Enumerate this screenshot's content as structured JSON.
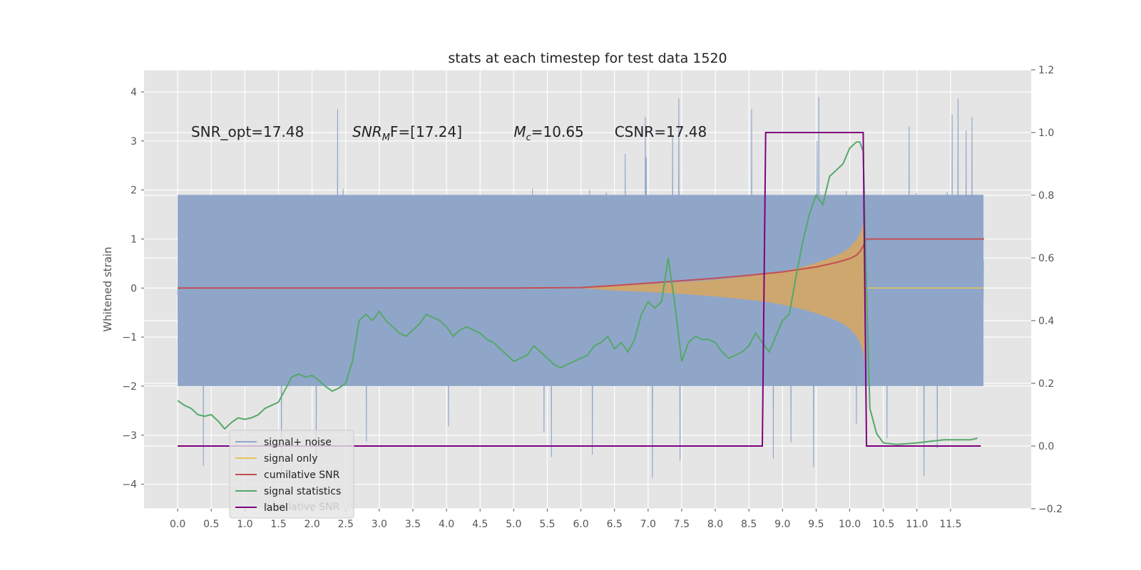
{
  "chart_data": {
    "type": "line",
    "title": "stats at each timestep for test data 1520",
    "ylabel_left": "Whitened strain",
    "ylabel_right": "",
    "xlim": [
      -0.5,
      12.7
    ],
    "ylim_left": [
      -4.5,
      4.45
    ],
    "ylim_right": [
      -0.2,
      1.2
    ],
    "x_ticks": [
      0.0,
      0.5,
      1.0,
      1.5,
      2.0,
      2.5,
      3.0,
      3.5,
      4.0,
      4.5,
      5.0,
      5.5,
      6.0,
      6.5,
      7.0,
      7.5,
      8.0,
      8.5,
      9.0,
      9.5,
      10.0,
      10.5,
      11.0,
      11.5
    ],
    "x_tick_labels": [
      "0.0",
      "0.5",
      "1.0",
      "1.5",
      "2.0",
      "2.5",
      "3.0",
      "3.5",
      "4.0",
      "4.5",
      "5.0",
      "5.5",
      "6.0",
      "6.5",
      "7.0",
      "7.5",
      "8.0",
      "8.5",
      "9.0",
      "9.5",
      "10.0",
      "10.5",
      "11.0",
      "11.5"
    ],
    "y_ticks_left": [
      -4,
      -3,
      -2,
      -1,
      0,
      1,
      2,
      3,
      4
    ],
    "y_tick_labels_left": [
      "−4",
      "−3",
      "−2",
      "−1",
      "0",
      "1",
      "2",
      "3",
      "4"
    ],
    "y_ticks_right": [
      -0.2,
      0.0,
      0.2,
      0.4,
      0.6,
      0.8,
      1.0,
      1.2
    ],
    "y_tick_labels_right": [
      "−0.2",
      "0.0",
      "0.2",
      "0.4",
      "0.6",
      "0.8",
      "1.0",
      "1.2"
    ],
    "grid": true,
    "legend_position": "lower-left",
    "annotations": [
      {
        "main": "SNR_opt=17.48",
        "x": 0.2
      },
      {
        "main": "SNR",
        "sub": "M",
        "rest": "F=[17.24]",
        "italic": true,
        "x": 2.6
      },
      {
        "main": "M",
        "sub": "c",
        "rest": "=10.65",
        "italic": true,
        "x": 5.0
      },
      {
        "main": "CSNR=17.48",
        "x": 6.5
      }
    ],
    "annotation_y": 3.2,
    "series": [
      {
        "name": "signal+ noise",
        "color": "#8fa6c9",
        "axis": "left",
        "style": "noise",
        "x_range": [
          0.0,
          11.99
        ],
        "envelope_min": -2.0,
        "envelope_max": 1.9,
        "spike_max": 4.0,
        "spike_min": -4.1
      },
      {
        "name": "signal only",
        "color": "#e8c45a",
        "axis": "left",
        "style": "chirp-envelope",
        "fill_color": "#d9a75e",
        "x": [
          6.0,
          6.5,
          7.0,
          7.5,
          8.0,
          8.5,
          8.8,
          9.0,
          9.2,
          9.4,
          9.6,
          9.8,
          9.9,
          10.0,
          10.1,
          10.15,
          10.2,
          10.22,
          10.25
        ],
        "amplitude": [
          0.0,
          0.05,
          0.08,
          0.12,
          0.17,
          0.24,
          0.29,
          0.34,
          0.4,
          0.47,
          0.56,
          0.66,
          0.73,
          0.83,
          0.98,
          1.1,
          1.3,
          1.55,
          0.0
        ],
        "after_x": [
          10.25,
          12.0
        ],
        "after_value": 0.0
      },
      {
        "name": "cumilative SNR",
        "color": "#c44e52",
        "axis": "left",
        "x": [
          0.0,
          1.0,
          2.0,
          3.0,
          4.0,
          5.0,
          6.0,
          6.5,
          7.0,
          7.5,
          8.0,
          8.5,
          9.0,
          9.5,
          9.8,
          10.0,
          10.1,
          10.15,
          10.2,
          10.25,
          10.3,
          11.0,
          11.5,
          12.0
        ],
        "y": [
          0.0,
          0.0,
          0.0,
          0.0,
          0.0,
          0.0,
          0.01,
          0.05,
          0.1,
          0.15,
          0.2,
          0.26,
          0.33,
          0.43,
          0.52,
          0.6,
          0.67,
          0.74,
          0.85,
          1.0,
          1.0,
          1.0,
          1.0,
          1.0
        ]
      },
      {
        "name": "signal statistics",
        "color": "#55a868",
        "axis": "right",
        "x": [
          0.0,
          0.1,
          0.2,
          0.3,
          0.4,
          0.5,
          0.6,
          0.7,
          0.8,
          0.9,
          1.0,
          1.1,
          1.2,
          1.3,
          1.4,
          1.5,
          1.6,
          1.7,
          1.8,
          1.9,
          2.0,
          2.1,
          2.2,
          2.3,
          2.4,
          2.5,
          2.6,
          2.7,
          2.8,
          2.9,
          3.0,
          3.1,
          3.2,
          3.3,
          3.4,
          3.5,
          3.6,
          3.7,
          3.8,
          3.9,
          4.0,
          4.1,
          4.2,
          4.3,
          4.4,
          4.5,
          4.6,
          4.7,
          4.8,
          4.9,
          5.0,
          5.1,
          5.2,
          5.3,
          5.4,
          5.5,
          5.6,
          5.7,
          5.8,
          5.9,
          6.0,
          6.1,
          6.2,
          6.3,
          6.4,
          6.5,
          6.6,
          6.7,
          6.8,
          6.9,
          7.0,
          7.1,
          7.2,
          7.3,
          7.4,
          7.5,
          7.6,
          7.7,
          7.8,
          7.9,
          8.0,
          8.1,
          8.2,
          8.3,
          8.4,
          8.5,
          8.6,
          8.7,
          8.8,
          8.9,
          9.0,
          9.1,
          9.2,
          9.3,
          9.4,
          9.5,
          9.6,
          9.7,
          9.8,
          9.9,
          10.0,
          10.1,
          10.15,
          10.2,
          10.25,
          10.3,
          10.4,
          10.5,
          10.7,
          11.0,
          11.2,
          11.4,
          11.6,
          11.8,
          11.9
        ],
        "y": [
          0.145,
          0.13,
          0.12,
          0.1,
          0.095,
          0.1,
          0.08,
          0.055,
          0.075,
          0.09,
          0.085,
          0.09,
          0.1,
          0.12,
          0.13,
          0.14,
          0.18,
          0.22,
          0.23,
          0.22,
          0.225,
          0.21,
          0.19,
          0.175,
          0.185,
          0.2,
          0.27,
          0.4,
          0.42,
          0.4,
          0.43,
          0.4,
          0.38,
          0.36,
          0.35,
          0.37,
          0.39,
          0.42,
          0.41,
          0.4,
          0.38,
          0.35,
          0.37,
          0.38,
          0.37,
          0.36,
          0.34,
          0.33,
          0.31,
          0.29,
          0.27,
          0.28,
          0.29,
          0.32,
          0.3,
          0.28,
          0.26,
          0.25,
          0.26,
          0.27,
          0.28,
          0.29,
          0.32,
          0.33,
          0.35,
          0.31,
          0.33,
          0.3,
          0.34,
          0.42,
          0.46,
          0.44,
          0.46,
          0.6,
          0.45,
          0.27,
          0.33,
          0.35,
          0.34,
          0.34,
          0.33,
          0.3,
          0.28,
          0.29,
          0.3,
          0.32,
          0.36,
          0.33,
          0.3,
          0.35,
          0.4,
          0.42,
          0.54,
          0.65,
          0.74,
          0.8,
          0.77,
          0.86,
          0.88,
          0.9,
          0.95,
          0.97,
          0.97,
          0.94,
          0.5,
          0.12,
          0.04,
          0.01,
          0.005,
          0.01,
          0.015,
          0.02,
          0.02,
          0.02,
          0.025
        ]
      },
      {
        "name": "label",
        "color": "#800080",
        "axis": "right",
        "step": true,
        "x": [
          0.0,
          8.7,
          8.75,
          10.2,
          10.25,
          11.95
        ],
        "y": [
          0.0,
          0.0,
          1.0,
          1.0,
          0.0,
          0.0
        ]
      }
    ],
    "legend_ghost_text": "cumilative SNR"
  }
}
